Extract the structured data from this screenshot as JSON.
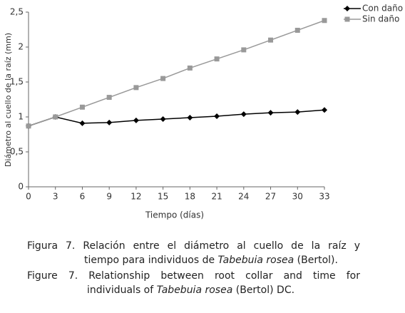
{
  "chart_data": {
    "type": "line",
    "x_label": "Tiempo (días)",
    "y_label": "Diámetro al cuello de la raíz (mm)",
    "x": [
      0,
      3,
      6,
      9,
      12,
      15,
      18,
      21,
      24,
      27,
      30,
      33
    ],
    "series": [
      {
        "name": "Con daño",
        "color": "#000000",
        "marker": "diamond",
        "values": [
          0.87,
          1.0,
          0.91,
          0.92,
          0.95,
          0.97,
          0.99,
          1.01,
          1.04,
          1.06,
          1.07,
          1.1
        ]
      },
      {
        "name": "Sin daño",
        "color": "#999999",
        "marker": "square",
        "values": [
          0.87,
          1.0,
          1.14,
          1.28,
          1.42,
          1.55,
          1.7,
          1.83,
          1.96,
          2.1,
          2.24,
          2.38
        ]
      }
    ],
    "xlim": [
      0,
      33
    ],
    "xticks": [
      0,
      3,
      6,
      9,
      12,
      15,
      18,
      21,
      24,
      27,
      30,
      33
    ],
    "ylim": [
      0,
      2.5
    ],
    "yticks": [
      0,
      {
        "value": 0.5,
        "label": "0,5"
      },
      1,
      {
        "value": 1.5,
        "label": "1,5"
      },
      2,
      {
        "value": 2.5,
        "label": "2,5"
      }
    ],
    "grid": false,
    "legend": "top-right",
    "caption": [
      [
        "Figura 7. Relación entre el diámetro al cuello de la raíz y"
      ],
      [
        "tiempo para individuos de ",
        "Tabebuia rosea",
        " (Bertol)."
      ],
      [
        "Figure 7. Relationship between root collar and time for"
      ],
      [
        "individuals of ",
        "Tabebuia rosea",
        " (Bertol) DC."
      ]
    ]
  }
}
